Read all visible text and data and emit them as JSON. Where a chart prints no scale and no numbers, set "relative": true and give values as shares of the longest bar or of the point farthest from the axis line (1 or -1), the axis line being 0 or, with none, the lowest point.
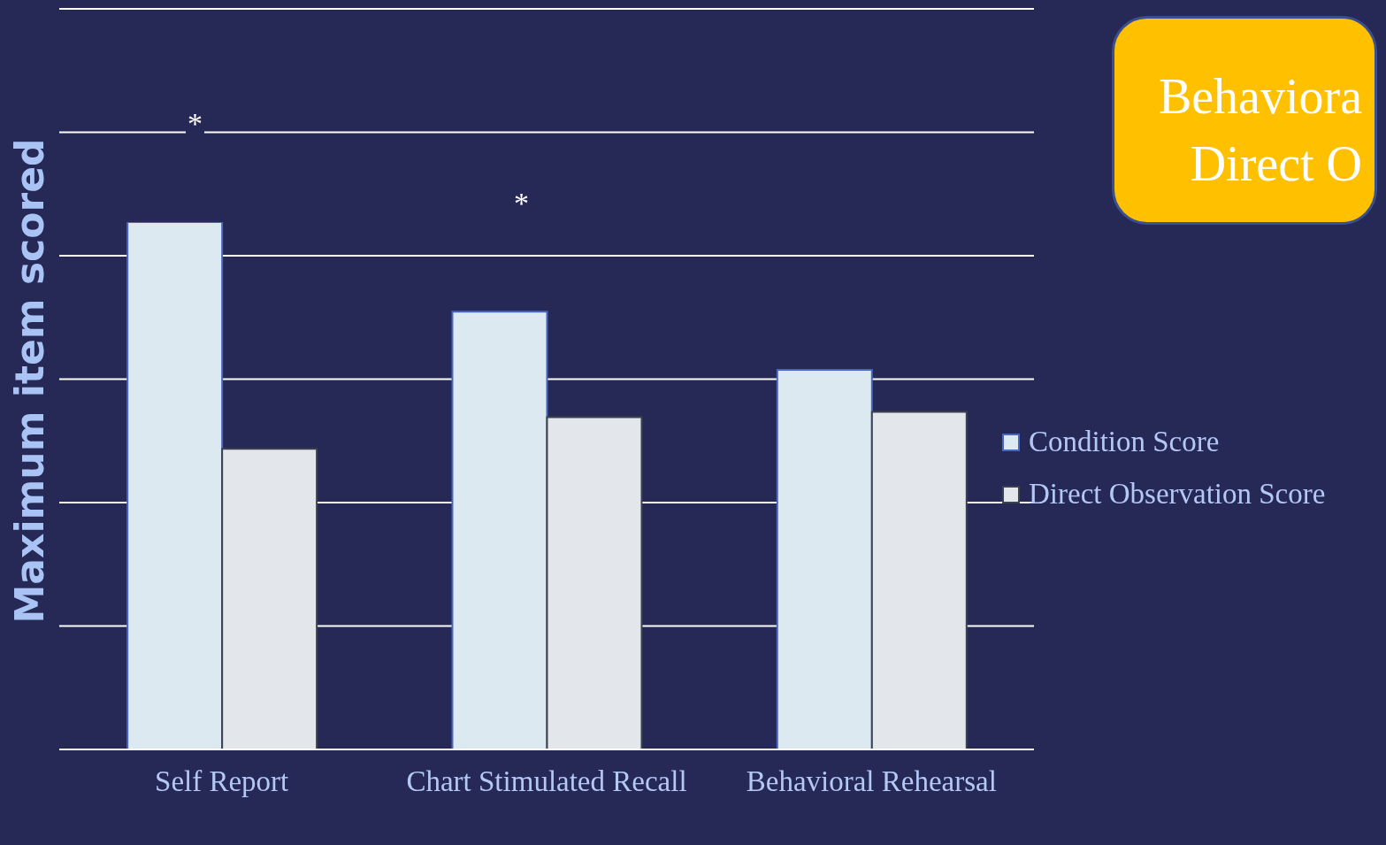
{
  "chart_data": {
    "type": "bar",
    "ylabel": "Maximum  item scored",
    "relative": true,
    "categories": [
      "Self Report",
      "Chart Stimulated Recall",
      "Behavioral Rehearsal"
    ],
    "series": [
      {
        "name": "Condition Score",
        "color": "#dde9f0",
        "values": [
          1,
          0.83,
          0.72
        ]
      },
      {
        "name": "Direct Observation Score",
        "color": "#e3e7ec",
        "values": [
          0.57,
          0.63,
          0.64
        ]
      }
    ],
    "annotations": [
      "*",
      "*",
      "Behaviora\nDirect O"
    ],
    "grid": "y",
    "legend": "right"
  }
}
